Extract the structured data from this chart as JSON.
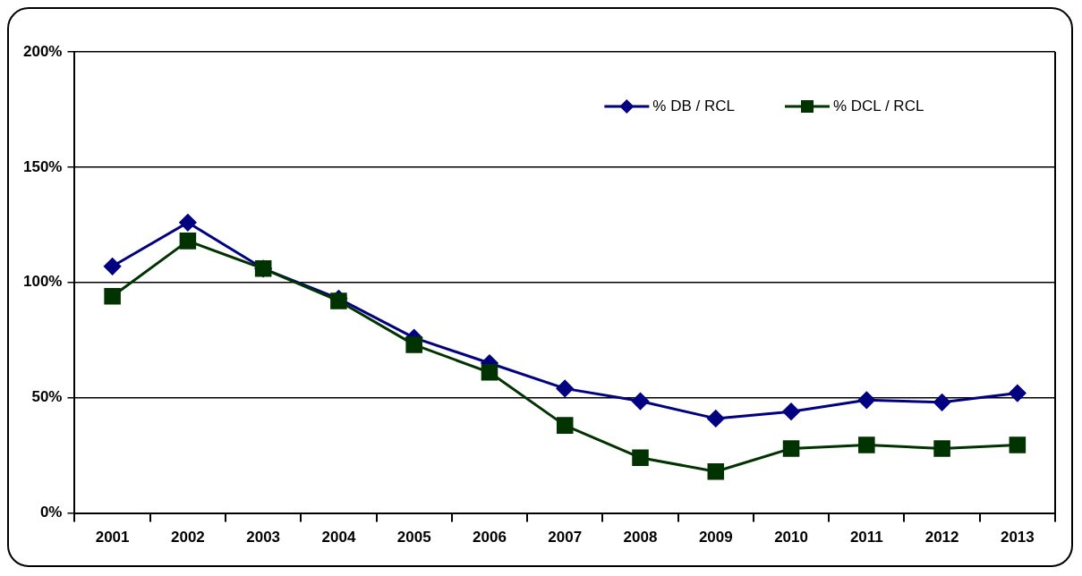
{
  "chart_data": {
    "type": "line",
    "categories": [
      "2001",
      "2002",
      "2003",
      "2004",
      "2005",
      "2006",
      "2007",
      "2008",
      "2009",
      "2010",
      "2011",
      "2012",
      "2013"
    ],
    "series": [
      {
        "name": "% DB / RCL",
        "color": "#000080",
        "marker": "diamond",
        "values": [
          107,
          126,
          106,
          93,
          76,
          65,
          54,
          48.5,
          41,
          44,
          49,
          48,
          52
        ]
      },
      {
        "name": "% DCL / RCL",
        "color": "#003300",
        "marker": "square",
        "values": [
          94,
          118,
          106,
          92,
          73,
          61,
          38,
          24,
          18,
          28,
          29.5,
          28,
          29.5
        ]
      }
    ],
    "ylim": [
      0,
      200
    ],
    "yticks": [
      {
        "value": 0,
        "label": "0%"
      },
      {
        "value": 50,
        "label": "50%"
      },
      {
        "value": 100,
        "label": "100%"
      },
      {
        "value": 150,
        "label": "150%"
      },
      {
        "value": 200,
        "label": "200%"
      }
    ],
    "grid": "y",
    "legend": "top right",
    "line_style": "solid"
  }
}
